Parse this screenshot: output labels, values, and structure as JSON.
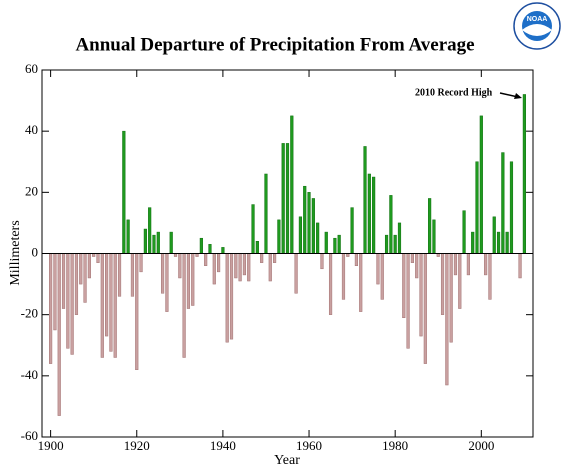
{
  "chart_data": {
    "type": "bar",
    "title": "Annual Departure of Precipitation From Average",
    "y_label": "Millimeters",
    "x_label": "Year",
    "annotation": "2010 Record High",
    "logo_text": "NOAA",
    "x": [
      1900,
      1901,
      1902,
      1903,
      1904,
      1905,
      1906,
      1907,
      1908,
      1909,
      1910,
      1911,
      1912,
      1913,
      1914,
      1915,
      1916,
      1917,
      1918,
      1919,
      1920,
      1921,
      1922,
      1923,
      1924,
      1925,
      1926,
      1927,
      1928,
      1929,
      1930,
      1931,
      1932,
      1933,
      1934,
      1935,
      1936,
      1937,
      1938,
      1939,
      1940,
      1941,
      1942,
      1943,
      1944,
      1945,
      1946,
      1947,
      1948,
      1949,
      1950,
      1951,
      1952,
      1953,
      1954,
      1955,
      1956,
      1957,
      1958,
      1959,
      1960,
      1961,
      1962,
      1963,
      1964,
      1965,
      1966,
      1967,
      1968,
      1969,
      1970,
      1971,
      1972,
      1973,
      1974,
      1975,
      1976,
      1977,
      1978,
      1979,
      1980,
      1981,
      1982,
      1983,
      1984,
      1985,
      1986,
      1987,
      1988,
      1989,
      1990,
      1991,
      1992,
      1993,
      1994,
      1995,
      1996,
      1997,
      1998,
      1999,
      2000,
      2001,
      2002,
      2003,
      2004,
      2005,
      2006,
      2007,
      2008,
      2009,
      2010
    ],
    "values": [
      -36,
      -25,
      -53,
      -18,
      -31,
      -33,
      -20,
      -10,
      -16,
      -8,
      -1,
      -3,
      -34,
      -27,
      -32,
      -34,
      -14,
      40,
      11,
      -14,
      -38,
      -6,
      8,
      15,
      6,
      7,
      -13,
      -19,
      7,
      -1,
      -8,
      -34,
      -18,
      -17,
      -1,
      5,
      -4,
      3,
      -10,
      -6,
      2,
      -29,
      -28,
      -8,
      -9,
      -7,
      -9,
      16,
      4,
      -3,
      26,
      -9,
      -3,
      11,
      36,
      36,
      45,
      -13,
      12,
      22,
      20,
      18,
      10,
      -5,
      7,
      -20,
      5,
      6,
      -15,
      -1,
      15,
      -4,
      -19,
      35,
      26,
      25,
      -10,
      -15,
      6,
      19,
      6,
      10,
      -21,
      -31,
      -3,
      -8,
      -27,
      -36,
      18,
      11,
      -1,
      -20,
      -43,
      -29,
      -7,
      -18,
      14,
      -7,
      7,
      30,
      45,
      -7,
      -15,
      12,
      7,
      33,
      7,
      30,
      0,
      -8,
      52
    ],
    "positive_color": "#1f9a1f",
    "negative_color": "#c9a0a0",
    "xlim": [
      1898,
      2012
    ],
    "ylim": [
      -60,
      60
    ],
    "xticks": [
      1900,
      1920,
      1940,
      1960,
      1980,
      2000
    ],
    "yticks": [
      -60,
      -40,
      -20,
      0,
      20,
      40,
      60
    ]
  }
}
